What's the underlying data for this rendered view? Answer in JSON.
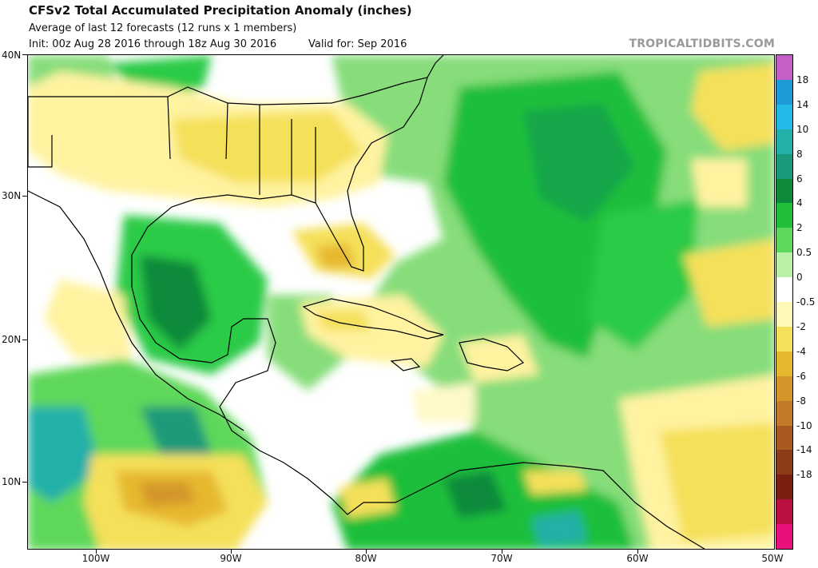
{
  "header": {
    "title": "CFSv2 Total Accumulated Precipitation Anomaly (inches)",
    "subtitle": "Average of last 12 forecasts (12 runs x 1 members)",
    "init": "Init: 00z Aug 28 2016 through 18z Aug 30 2016",
    "valid": "Valid for: Sep 2016"
  },
  "brand": "TROPICALTIDBITS.COM",
  "axes": {
    "lat_labels": [
      "40N",
      "30N",
      "20N",
      "10N"
    ],
    "lon_labels": [
      "100W",
      "90W",
      "80W",
      "70W",
      "60W",
      "50W"
    ]
  },
  "colorbar": {
    "labels": [
      "18",
      "14",
      "10",
      "8",
      "6",
      "4",
      "2",
      "0.5",
      "0",
      "-0.5",
      "-2",
      "-4",
      "-6",
      "-8",
      "-10",
      "-14",
      "-18"
    ],
    "colors": [
      "#c55fc8",
      "#1d9bd6",
      "#23b9e6",
      "#22b0a8",
      "#1a9a7a",
      "#0f8a3a",
      "#1fbf3a",
      "#5ed85a",
      "#b8f0a8",
      "#ffffff",
      "#fff9b8",
      "#f5e05a",
      "#e6b82e",
      "#d4952a",
      "#c27a28",
      "#a85a20",
      "#8c3c18",
      "#7a2010",
      "#b81040",
      "#e8107c"
    ]
  },
  "map": {
    "ocean_color": "#ffffff",
    "land_outline": "#000000"
  }
}
